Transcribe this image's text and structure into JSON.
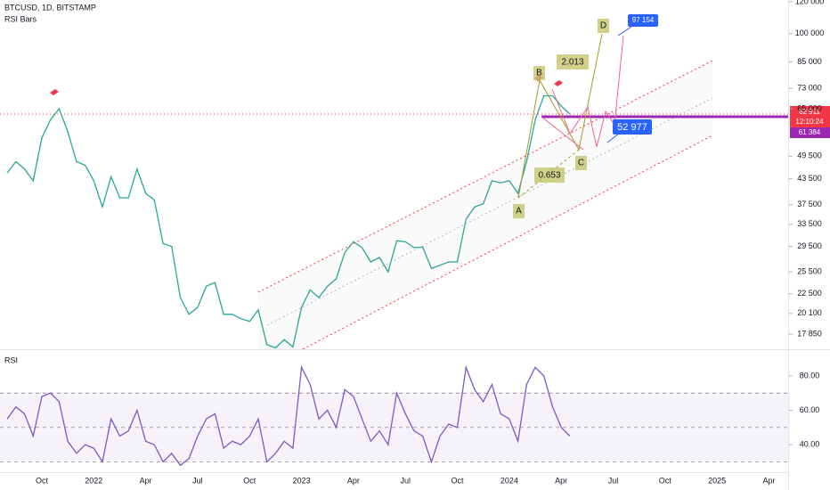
{
  "header": {
    "symbol": "BTCUSD, 1D, BITSTAMP",
    "indicator": "RSI Bars"
  },
  "annotations": {
    "points": [
      "A",
      "B",
      "C",
      "D"
    ],
    "ratios": [
      "2.013",
      "0.653"
    ],
    "targets": [
      "97 154",
      "52 977"
    ]
  },
  "price_tags": {
    "last": "62 911",
    "countdown": "12:10:24",
    "level": "61 384"
  },
  "chart_data": [
    {
      "type": "line",
      "log": true,
      "categories": [
        null,
        null,
        null,
        null,
        "Oct",
        null,
        null,
        null,
        null,
        null,
        "2022",
        null,
        null,
        null,
        null,
        null,
        "Apr",
        null,
        null,
        null,
        null,
        null,
        "Jul",
        null,
        null,
        null,
        null,
        null,
        "Oct",
        null,
        null,
        null,
        null,
        null,
        "2023",
        null,
        null,
        null,
        null,
        null,
        "Apr",
        null,
        null,
        null,
        null,
        null,
        "Jul",
        null,
        null,
        null,
        null,
        null,
        "Oct",
        null,
        null,
        null,
        null,
        null,
        "2024",
        null,
        null,
        null,
        null,
        null,
        "Apr",
        null,
        null,
        null,
        null,
        null,
        "Jul",
        null,
        null,
        null,
        null,
        null,
        "Oct",
        null,
        null,
        null,
        null,
        null,
        "2025",
        null,
        null,
        null,
        null,
        null,
        "Apr",
        null
      ],
      "series": [
        {
          "color": "#26a69a",
          "values": [
            45000,
            48000,
            46000,
            43000,
            55000,
            61000,
            65000,
            57000,
            48000,
            47000,
            43000,
            37000,
            44000,
            39000,
            39000,
            46000,
            40000,
            38500,
            30000,
            29500,
            22000,
            20000,
            20800,
            23500,
            24000,
            20000,
            20000,
            19500,
            19200,
            20500,
            16800,
            16500,
            17300,
            16600,
            20800,
            23000,
            22000,
            23500,
            24500,
            28500,
            30300,
            29300,
            27000,
            27700,
            25500,
            30500,
            30300,
            29300,
            29400,
            26000,
            26500,
            27000,
            27000,
            34500,
            37000,
            37700,
            43000,
            42500,
            43000,
            40000,
            48000,
            61000,
            70000,
            70000,
            66000,
            63000,
            null,
            null,
            null,
            null,
            null,
            null,
            null,
            null,
            null,
            null,
            null,
            null,
            null,
            null,
            null,
            null,
            null,
            null,
            null,
            null,
            null,
            null,
            null,
            null
          ]
        }
      ],
      "ylim": [
        16370,
        121200
      ],
      "yticks": [
        {
          "value": 120000,
          "label": "120 000"
        },
        {
          "value": 100000,
          "label": "100 000"
        },
        {
          "value": 85000,
          "label": "85 000"
        },
        {
          "value": 73000,
          "label": "73 000"
        },
        {
          "value": 65000,
          "label": "65 000"
        },
        {
          "value": 49500,
          "label": "49 500"
        },
        {
          "value": 43500,
          "label": "43 500"
        },
        {
          "value": 37500,
          "label": "37 500"
        },
        {
          "value": 33500,
          "label": "33 500"
        },
        {
          "value": 29500,
          "label": "29 500"
        },
        {
          "value": 25500,
          "label": "25 500"
        },
        {
          "value": 22500,
          "label": "22 500"
        },
        {
          "value": 20100,
          "label": "20 100"
        },
        {
          "value": 17850,
          "label": "17 850"
        }
      ]
    },
    {
      "type": "line",
      "title": "RSI",
      "series": [
        {
          "color": "#7e57c2",
          "values": [
            55,
            62,
            58,
            45,
            68,
            70,
            65,
            42,
            35,
            40,
            38,
            30,
            55,
            45,
            48,
            60,
            42,
            40,
            30,
            35,
            28,
            32,
            45,
            55,
            58,
            38,
            42,
            40,
            45,
            55,
            30,
            35,
            42,
            38,
            85,
            75,
            55,
            60,
            50,
            72,
            68,
            55,
            42,
            48,
            40,
            70,
            58,
            48,
            45,
            30,
            45,
            52,
            50,
            85,
            72,
            65,
            75,
            58,
            55,
            42,
            75,
            85,
            80,
            62,
            50,
            45,
            null,
            null,
            null,
            null,
            null,
            null,
            null,
            null,
            null,
            null,
            null,
            null,
            null,
            null,
            null,
            null,
            null,
            null,
            null,
            null,
            null,
            null,
            null,
            null
          ]
        }
      ],
      "ylim": [
        24,
        95
      ],
      "yticks": [
        {
          "value": 80,
          "label": "80.00"
        },
        {
          "value": 60,
          "label": "60.00"
        },
        {
          "value": 40,
          "label": "40.00"
        }
      ],
      "levels": [
        70,
        50,
        30
      ]
    }
  ]
}
